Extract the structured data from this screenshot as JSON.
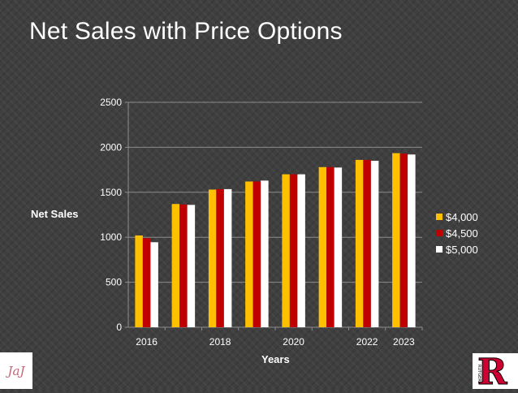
{
  "slide": {
    "title": "Net Sales with Price Options"
  },
  "logos": {
    "left_text": "JaJ",
    "right_letter": "R",
    "right_word": "RUTGERS"
  },
  "chart_data": {
    "type": "bar",
    "title": "",
    "xlabel": "Years",
    "ylabel": "Net Sales",
    "categories": [
      "2016",
      "",
      "2018",
      "",
      "2020",
      "",
      "2022",
      "2023"
    ],
    "ylim": [
      0,
      2500
    ],
    "yticks": [
      0,
      500,
      1000,
      1500,
      2000,
      2500
    ],
    "grid": true,
    "legend_position": "right",
    "series": [
      {
        "name": "$4,000",
        "color": "#ffc000",
        "values": [
          1020,
          1370,
          1530,
          1620,
          1700,
          1780,
          1860,
          1935
        ]
      },
      {
        "name": "$4,500",
        "color": "#c00000",
        "values": [
          990,
          1365,
          1535,
          1620,
          1700,
          1780,
          1860,
          1930
        ]
      },
      {
        "name": "$5,000",
        "color": "#ffffff",
        "values": [
          945,
          1360,
          1535,
          1630,
          1700,
          1775,
          1850,
          1920
        ]
      }
    ]
  }
}
